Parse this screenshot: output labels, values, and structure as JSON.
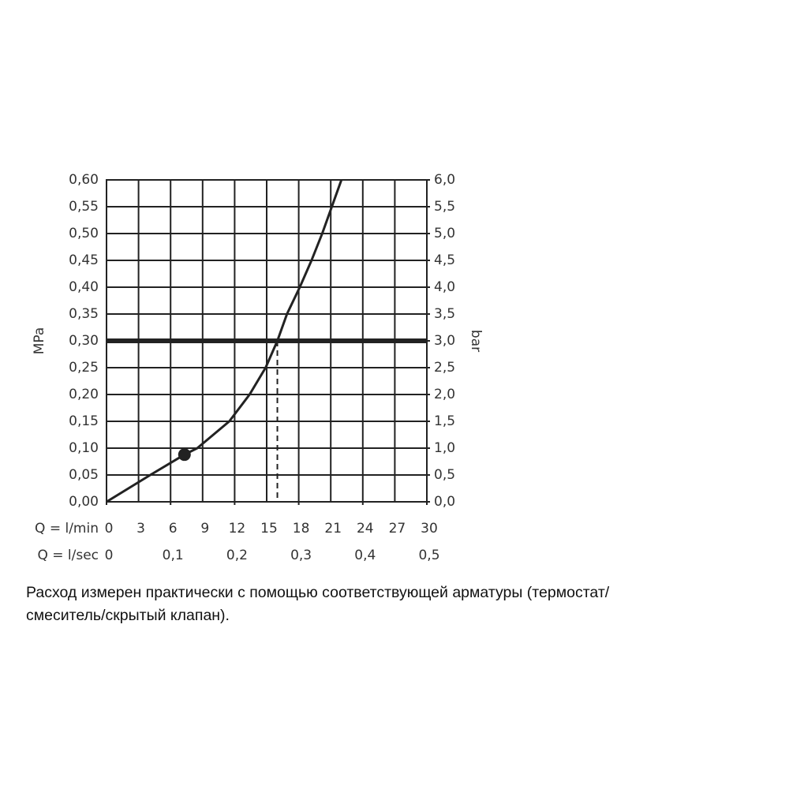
{
  "chart_data": {
    "type": "line",
    "x": [
      0,
      4.1,
      7.3,
      8.5,
      11.5,
      13.4,
      14.9,
      16,
      16.9,
      18.1,
      19.2,
      20.2,
      21.1,
      22
    ],
    "series": [
      {
        "color": "#222222",
        "values": [
          0,
          0.05,
          0.088,
          0.1,
          0.15,
          0.2,
          0.25,
          0.3,
          0.35,
          0.4,
          0.45,
          0.5,
          0.55,
          0.6
        ]
      }
    ],
    "xlim": [
      0,
      30
    ],
    "xticks": [
      0,
      3,
      6,
      9,
      12,
      15,
      18,
      21,
      24,
      27,
      30
    ],
    "x2lim": [
      0,
      0.5
    ],
    "x2ticks": [
      0,
      {
        "value": 0.1,
        "label": "0,1"
      },
      {
        "value": 0.2,
        "label": "0,2"
      },
      {
        "value": 0.3,
        "label": "0,3"
      },
      {
        "value": 0.4,
        "label": "0,4"
      },
      {
        "value": 0.5,
        "label": "0,5"
      }
    ],
    "ylim": [
      0,
      0.6
    ],
    "yticks": [
      {
        "value": 0,
        "label": "0,00"
      },
      {
        "value": 0.05,
        "label": "0,05"
      },
      {
        "value": 0.1,
        "label": "0,10"
      },
      {
        "value": 0.15,
        "label": "0,15"
      },
      {
        "value": 0.2,
        "label": "0,20"
      },
      {
        "value": 0.25,
        "label": "0,25"
      },
      {
        "value": 0.3,
        "label": "0,30"
      },
      {
        "value": 0.35,
        "label": "0,35"
      },
      {
        "value": 0.4,
        "label": "0,40"
      },
      {
        "value": 0.45,
        "label": "0,45"
      },
      {
        "value": 0.5,
        "label": "0,50"
      },
      {
        "value": 0.55,
        "label": "0,55"
      },
      {
        "value": 0.6,
        "label": "0,60"
      }
    ],
    "y2lim": [
      0,
      6
    ],
    "y2ticks": [
      {
        "value": 0,
        "label": "0,0"
      },
      {
        "value": 0.5,
        "label": "0,5"
      },
      {
        "value": 1,
        "label": "1,0"
      },
      {
        "value": 1.5,
        "label": "1,5"
      },
      {
        "value": 2,
        "label": "2,0"
      },
      {
        "value": 2.5,
        "label": "2,5"
      },
      {
        "value": 3,
        "label": "3,0"
      },
      {
        "value": 3.5,
        "label": "3,5"
      },
      {
        "value": 4,
        "label": "4,0"
      },
      {
        "value": 4.5,
        "label": "4,5"
      },
      {
        "value": 5,
        "label": "5,0"
      },
      {
        "value": 5.5,
        "label": "5,5"
      },
      {
        "value": 6,
        "label": "6,0"
      }
    ],
    "xlabel": "Q = l/min",
    "x2label": "Q = l/sec",
    "ylabel": "MPa",
    "y2label": "bar",
    "grid": true,
    "reference": {
      "y": 0.3,
      "x": 16
    },
    "marker": {
      "x": 7.3,
      "y": 0.088
    },
    "caption": [
      "Расход измерен практически с помощью соответствующей арматуры (термостат/",
      "смеситель/скрытый клапан)."
    ]
  }
}
